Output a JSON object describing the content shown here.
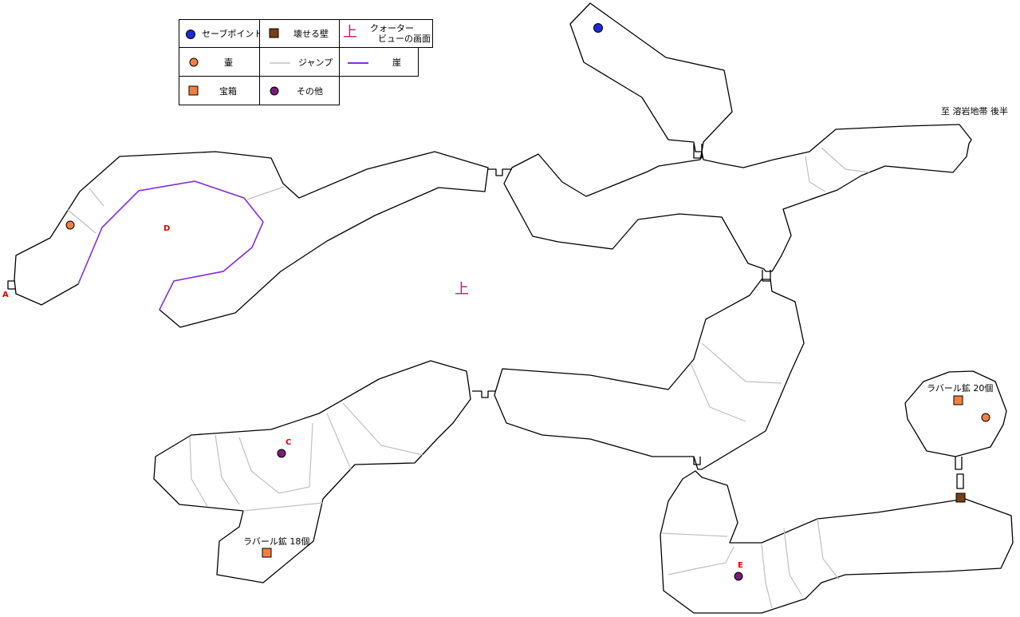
{
  "legend": {
    "save_point": "セーブポイント",
    "breakable_wall": "壊せる壁",
    "up_symbol": "上",
    "quarter_view_line1": "クォーター",
    "quarter_view_line2": "ビューの画面",
    "jar": "壷",
    "jump": "ジャンプ",
    "cliff": "崖",
    "chest": "宝箱",
    "other": "その他"
  },
  "labels": {
    "to_lava_zone": "至 溶岩地帯 後半",
    "chest_20": "ラバール鉱 20個",
    "chest_18": "ラバール鉱 18個",
    "point_a": "A",
    "point_c": "C",
    "point_d": "D",
    "point_e": "E",
    "center_up": "上"
  },
  "colors": {
    "save_point": "#1a2bd6",
    "jar": "#f08040",
    "chest": "#f08040",
    "breakable_wall": "#7a3f12",
    "other": "#7a1a7a",
    "jump_line": "#c0c0c0",
    "cliff_line": "#8a2be2",
    "quarter_view": "#b0206a",
    "letters": "#e00000"
  }
}
